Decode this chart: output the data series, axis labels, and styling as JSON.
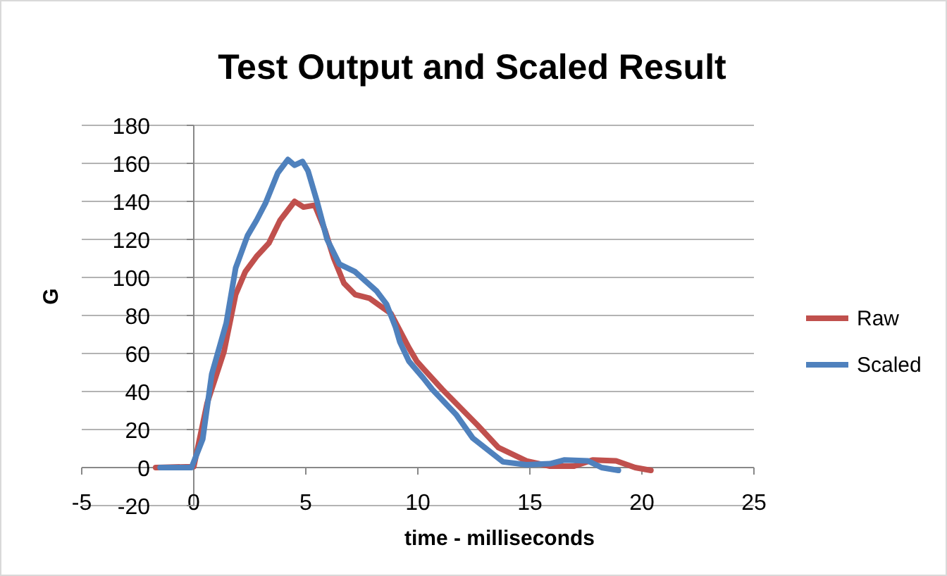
{
  "chart_data": {
    "type": "line",
    "title": "Test Output and Scaled Result",
    "xlabel": "time - milliseconds",
    "ylabel": "G",
    "xlim": [
      -5,
      25
    ],
    "xticks": [
      -5,
      0,
      5,
      10,
      15,
      20,
      25
    ],
    "ylim": [
      -20,
      180
    ],
    "yticks": [
      -20,
      0,
      20,
      40,
      60,
      80,
      100,
      120,
      140,
      160,
      180
    ],
    "grid": "y",
    "legend": "right",
    "line_style": "solid",
    "marker": "none",
    "series": [
      {
        "name": "Raw",
        "color": "#c0504d",
        "x": [
          -1.7,
          0,
          0.6,
          1.35,
          1.87,
          2.3,
          2.8,
          3.35,
          3.85,
          4.5,
          4.9,
          5.4,
          5.85,
          6.25,
          6.7,
          7.2,
          7.85,
          8.8,
          9.6,
          9.95,
          10.25,
          11.1,
          12.65,
          13.6,
          14.85,
          15.9,
          16.95,
          17.8,
          18.85,
          19.7,
          20.4
        ],
        "values": [
          0,
          0.5,
          34,
          61,
          91,
          103,
          111,
          118,
          130,
          140,
          137,
          138,
          125,
          110,
          97,
          91,
          89,
          81,
          63,
          56,
          52,
          41,
          22.5,
          10.5,
          3.5,
          0.7,
          0.7,
          4,
          3.5,
          0,
          -1.5
        ]
      },
      {
        "name": "Scaled",
        "color": "#4f81bd",
        "x": [
          -1.5,
          -0.1,
          0.4,
          0.8,
          1.45,
          1.87,
          2.4,
          2.8,
          3.2,
          3.75,
          4.2,
          4.5,
          4.85,
          5.1,
          5.5,
          5.95,
          6.5,
          7.2,
          8.15,
          8.6,
          9,
          9.2,
          9.6,
          10.25,
          10.65,
          11.7,
          12.45,
          13.8,
          14.85,
          15.9,
          16.55,
          17.6,
          18.2,
          18.95
        ],
        "values": [
          0,
          0,
          15,
          49,
          76,
          105,
          122,
          130,
          139,
          155,
          162,
          159,
          161,
          156,
          140,
          120,
          107,
          103,
          93,
          86,
          74,
          66,
          56,
          47,
          41,
          28,
          15.5,
          3,
          1.5,
          2,
          4,
          3.5,
          0,
          -1.5
        ]
      }
    ]
  }
}
